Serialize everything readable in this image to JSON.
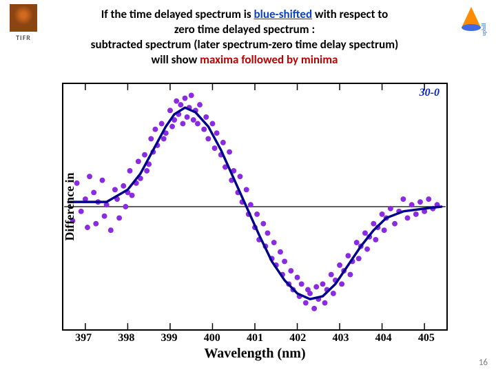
{
  "logos": {
    "left_label": "TIFR",
    "right_label": "uphill"
  },
  "heading": {
    "line1_pre": "If the time delayed spectrum is ",
    "line1_blue": "blue-shifted",
    "line1_post": " with respect to",
    "line2": "zero time delayed spectrum :",
    "line3": "subtracted spectrum (later spectrum-zero time delay spectrum)",
    "line4_pre": "will show ",
    "line4_red": "maxima followed by minima"
  },
  "chart": {
    "type": "scatter+line",
    "xlabel": "Wavelength (nm)",
    "ylabel": "Difference in",
    "legend_label": "30-0",
    "background_color": "#ffffff",
    "border_color": "#000000",
    "scatter_color": "#8a2be2",
    "line_color": "#00008b",
    "line_width": 3.5,
    "marker_size": 4,
    "xlim": [
      396.5,
      405.5
    ],
    "ylim": [
      -1.3,
      1.3
    ],
    "zero_line_y": 0,
    "xtick_labels": [
      "397",
      "398",
      "399",
      "400",
      "401",
      "402",
      "403",
      "404",
      "405"
    ],
    "xtick_positions": [
      397,
      398,
      399,
      400,
      401,
      402,
      403,
      404,
      405
    ],
    "xtick_fontsize": 16,
    "xlabel_fontsize": 20,
    "curve_points": [
      [
        396.6,
        0.05
      ],
      [
        397.0,
        0.05
      ],
      [
        397.5,
        0.05
      ],
      [
        398.0,
        0.18
      ],
      [
        398.3,
        0.35
      ],
      [
        398.6,
        0.6
      ],
      [
        398.9,
        0.85
      ],
      [
        399.1,
        0.98
      ],
      [
        399.35,
        1.05
      ],
      [
        399.6,
        1.0
      ],
      [
        399.9,
        0.85
      ],
      [
        400.2,
        0.6
      ],
      [
        400.5,
        0.3
      ],
      [
        400.8,
        0.0
      ],
      [
        401.1,
        -0.3
      ],
      [
        401.4,
        -0.58
      ],
      [
        401.7,
        -0.78
      ],
      [
        402.0,
        -0.92
      ],
      [
        402.3,
        -0.98
      ],
      [
        402.6,
        -0.95
      ],
      [
        402.9,
        -0.82
      ],
      [
        403.2,
        -0.62
      ],
      [
        403.5,
        -0.42
      ],
      [
        403.8,
        -0.25
      ],
      [
        404.1,
        -0.12
      ],
      [
        404.5,
        -0.05
      ],
      [
        405.0,
        -0.02
      ],
      [
        405.4,
        0.0
      ]
    ],
    "scatter_points": [
      [
        396.7,
        -0.15
      ],
      [
        396.8,
        0.25
      ],
      [
        396.9,
        -0.05
      ],
      [
        397.0,
        0.08
      ],
      [
        397.05,
        -0.22
      ],
      [
        397.1,
        0.32
      ],
      [
        397.2,
        0.15
      ],
      [
        397.25,
        -0.18
      ],
      [
        397.3,
        0.05
      ],
      [
        397.4,
        0.28
      ],
      [
        397.45,
        -0.1
      ],
      [
        397.5,
        0.02
      ],
      [
        397.6,
        -0.25
      ],
      [
        397.7,
        0.18
      ],
      [
        397.75,
        0.08
      ],
      [
        397.8,
        -0.12
      ],
      [
        397.9,
        0.22
      ],
      [
        397.95,
        0.0
      ],
      [
        398.0,
        0.15
      ],
      [
        398.05,
        0.38
      ],
      [
        398.1,
        0.12
      ],
      [
        398.2,
        0.25
      ],
      [
        398.25,
        0.48
      ],
      [
        398.3,
        0.3
      ],
      [
        398.4,
        0.55
      ],
      [
        398.45,
        0.38
      ],
      [
        398.5,
        0.45
      ],
      [
        398.55,
        0.72
      ],
      [
        398.6,
        0.58
      ],
      [
        398.65,
        0.82
      ],
      [
        398.7,
        0.65
      ],
      [
        398.8,
        0.88
      ],
      [
        398.85,
        0.72
      ],
      [
        398.9,
        0.78
      ],
      [
        399.0,
        1.02
      ],
      [
        399.05,
        0.85
      ],
      [
        399.1,
        0.92
      ],
      [
        399.15,
        1.12
      ],
      [
        399.2,
        0.98
      ],
      [
        399.25,
        1.08
      ],
      [
        399.3,
        0.88
      ],
      [
        399.35,
        1.15
      ],
      [
        399.4,
        0.95
      ],
      [
        399.45,
        1.05
      ],
      [
        399.5,
        1.18
      ],
      [
        399.55,
        0.92
      ],
      [
        399.6,
        1.02
      ],
      [
        399.65,
        0.88
      ],
      [
        399.7,
        1.08
      ],
      [
        399.8,
        0.82
      ],
      [
        399.85,
        0.95
      ],
      [
        399.9,
        0.72
      ],
      [
        400.0,
        0.88
      ],
      [
        400.05,
        0.62
      ],
      [
        400.1,
        0.78
      ],
      [
        400.2,
        0.55
      ],
      [
        400.25,
        0.68
      ],
      [
        400.3,
        0.42
      ],
      [
        400.4,
        0.58
      ],
      [
        400.45,
        0.28
      ],
      [
        400.5,
        0.38
      ],
      [
        400.6,
        0.15
      ],
      [
        400.65,
        0.32
      ],
      [
        400.7,
        0.05
      ],
      [
        400.8,
        0.18
      ],
      [
        400.85,
        -0.08
      ],
      [
        400.9,
        0.02
      ],
      [
        401.0,
        -0.22
      ],
      [
        401.05,
        -0.08
      ],
      [
        401.1,
        -0.35
      ],
      [
        401.2,
        -0.18
      ],
      [
        401.25,
        -0.42
      ],
      [
        401.3,
        -0.28
      ],
      [
        401.4,
        -0.55
      ],
      [
        401.45,
        -0.38
      ],
      [
        401.5,
        -0.62
      ],
      [
        401.6,
        -0.48
      ],
      [
        401.65,
        -0.72
      ],
      [
        401.7,
        -0.58
      ],
      [
        401.8,
        -0.82
      ],
      [
        401.85,
        -0.68
      ],
      [
        401.9,
        -0.88
      ],
      [
        402.0,
        -0.75
      ],
      [
        402.05,
        -0.95
      ],
      [
        402.1,
        -0.82
      ],
      [
        402.2,
        -1.02
      ],
      [
        402.25,
        -0.88
      ],
      [
        402.3,
        -0.92
      ],
      [
        402.4,
        -1.08
      ],
      [
        402.45,
        -0.85
      ],
      [
        402.5,
        -0.98
      ],
      [
        402.6,
        -0.82
      ],
      [
        402.65,
        -1.02
      ],
      [
        402.7,
        -0.88
      ],
      [
        402.8,
        -0.72
      ],
      [
        402.85,
        -0.92
      ],
      [
        402.9,
        -0.78
      ],
      [
        403.0,
        -0.62
      ],
      [
        403.05,
        -0.82
      ],
      [
        403.1,
        -0.68
      ],
      [
        403.2,
        -0.52
      ],
      [
        403.25,
        -0.72
      ],
      [
        403.3,
        -0.58
      ],
      [
        403.4,
        -0.38
      ],
      [
        403.45,
        -0.55
      ],
      [
        403.5,
        -0.42
      ],
      [
        403.6,
        -0.28
      ],
      [
        403.65,
        -0.45
      ],
      [
        403.7,
        -0.32
      ],
      [
        403.8,
        -0.18
      ],
      [
        403.85,
        -0.35
      ],
      [
        403.9,
        -0.22
      ],
      [
        404.0,
        -0.08
      ],
      [
        404.05,
        -0.25
      ],
      [
        404.1,
        -0.12
      ],
      [
        404.2,
        -0.02
      ],
      [
        404.3,
        -0.18
      ],
      [
        404.4,
        -0.05
      ],
      [
        404.5,
        0.08
      ],
      [
        404.6,
        -0.12
      ],
      [
        404.7,
        0.02
      ],
      [
        404.8,
        -0.08
      ],
      [
        404.9,
        0.05
      ],
      [
        405.0,
        -0.05
      ],
      [
        405.1,
        0.08
      ],
      [
        405.2,
        -0.02
      ],
      [
        405.3,
        0.02
      ]
    ]
  },
  "page_number": "16"
}
